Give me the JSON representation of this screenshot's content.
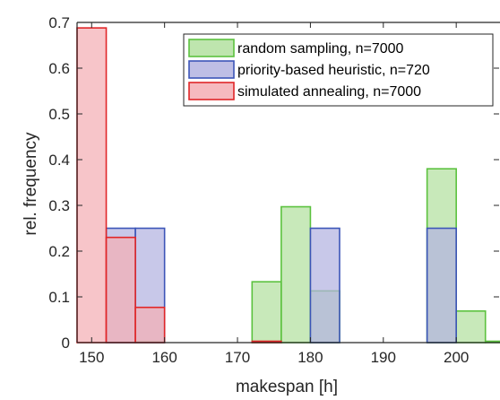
{
  "chart_data": {
    "type": "bar",
    "xlabel": "makespan [h]",
    "ylabel": "rel. frequency",
    "xlim": [
      148,
      206
    ],
    "ylim": [
      0,
      0.7
    ],
    "xticks": [
      150,
      160,
      170,
      180,
      190,
      200
    ],
    "yticks": [
      0,
      0.1,
      0.2,
      0.3,
      0.4,
      0.5,
      0.6,
      0.7
    ],
    "ytick_labels": [
      "0",
      "0.1",
      "0.2",
      "0.3",
      "0.4",
      "0.5",
      "0.6",
      "0.7"
    ],
    "bin_width": 4,
    "legend_position": "top-right",
    "grid": false,
    "series": [
      {
        "name": "random sampling, n=7000",
        "fill": "#b3e0a0",
        "edge": "#5cc23f",
        "bins": [
          {
            "x0": 156,
            "value": 0.003
          },
          {
            "x0": 172,
            "value": 0.133
          },
          {
            "x0": 176,
            "value": 0.297
          },
          {
            "x0": 180,
            "value": 0.113
          },
          {
            "x0": 196,
            "value": 0.38
          },
          {
            "x0": 200,
            "value": 0.069
          },
          {
            "x0": 204,
            "value": 0.003
          }
        ]
      },
      {
        "name": "priority-based heuristic, n=720",
        "fill": "#b3b3e0",
        "edge": "#3c55b8",
        "bins": [
          {
            "x0": 152,
            "value": 0.25
          },
          {
            "x0": 156,
            "value": 0.25
          },
          {
            "x0": 180,
            "value": 0.25
          },
          {
            "x0": 196,
            "value": 0.25
          }
        ]
      },
      {
        "name": "simulated annealing, n=7000",
        "fill": "#f4aeb4",
        "edge": "#e02628",
        "bins": [
          {
            "x0": 148,
            "value": 0.688
          },
          {
            "x0": 152,
            "value": 0.23
          },
          {
            "x0": 156,
            "value": 0.077
          },
          {
            "x0": 172,
            "value": 0.003
          }
        ]
      }
    ]
  }
}
